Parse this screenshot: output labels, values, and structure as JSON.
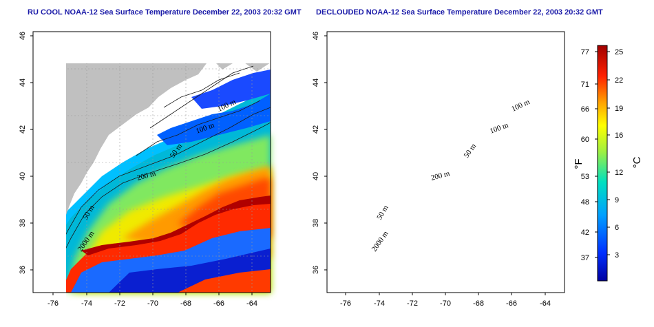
{
  "panels": [
    {
      "title": "RU COOL NOAA-12 Sea Surface Temperature December 22, 2003 20:32 GMT",
      "lat_ticks": [
        "36",
        "38",
        "40",
        "42",
        "44",
        "46"
      ],
      "lon_ticks": [
        "-76",
        "-74",
        "-72",
        "-70",
        "-68",
        "-66",
        "-64"
      ],
      "contour_labels": [
        "100 m",
        "100 m",
        "50 m",
        "200 m",
        "50 m",
        "2000 m"
      ]
    },
    {
      "title": "DECLOUDED NOAA-12 Sea Surface Temperature December 22, 2003 20:32 GMT",
      "lat_ticks": [
        "36",
        "38",
        "40",
        "42",
        "44",
        "46"
      ],
      "lon_ticks": [
        "-76",
        "-74",
        "-72",
        "-70",
        "-68",
        "-66",
        "-64"
      ],
      "contour_labels": [
        "100 m",
        "100 m",
        "50 m",
        "200 m",
        "50 m",
        "2000 m"
      ]
    }
  ],
  "colorbar": {
    "fahrenheit_ticks": [
      "77",
      "71",
      "66",
      "60",
      "53",
      "48",
      "42",
      "37"
    ],
    "celsius_ticks": [
      "25",
      "22",
      "19",
      "16",
      "12",
      "9",
      "6",
      "3"
    ],
    "fahrenheit_label": "°F",
    "celsius_label": "°C"
  },
  "colors": {
    "land": "#c0c0c0",
    "cloud": "#ffffff",
    "title": "#1a1aa8",
    "warm": "#a80000",
    "cold": "#0000a0"
  }
}
